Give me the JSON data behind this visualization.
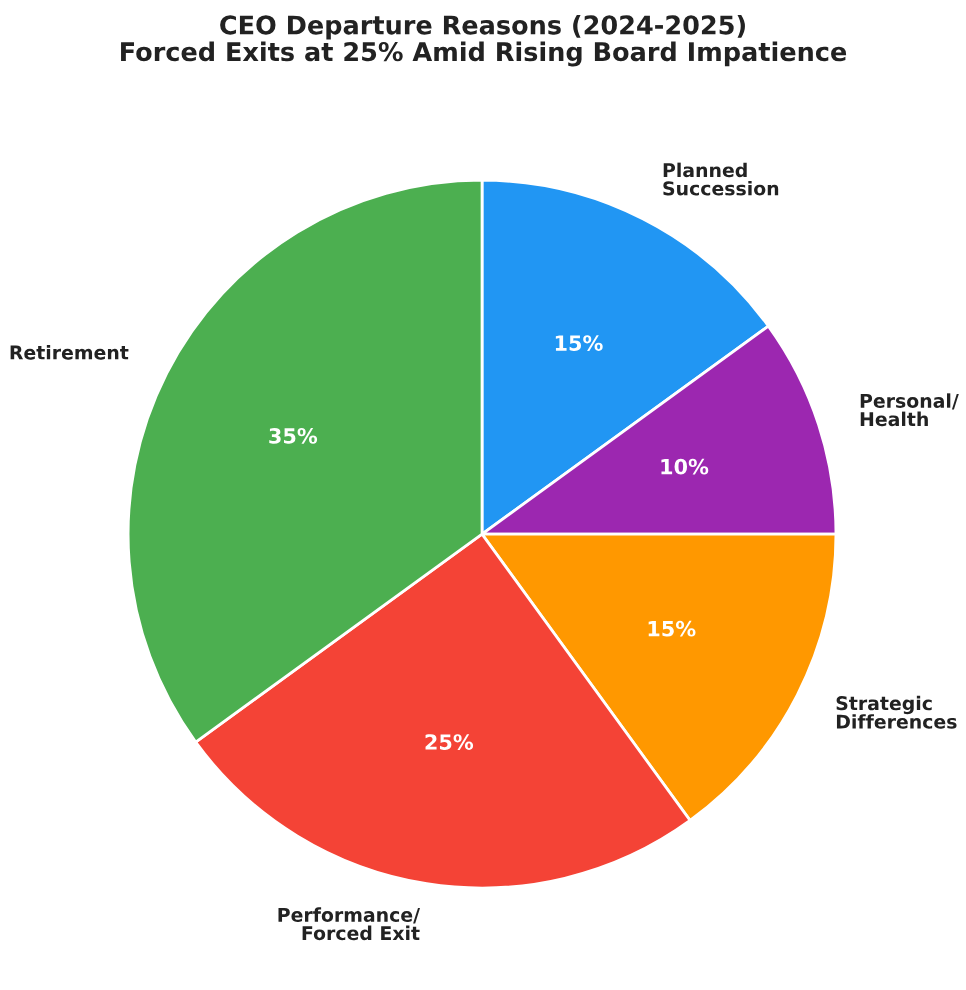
{
  "chart_data": {
    "type": "pie",
    "title": "CEO Departure Reasons (2024-2025)",
    "subtitle": "Forced Exits at 25% Amid Rising Board Impatience",
    "categories": [
      "Planned\nSuccession",
      "Personal/\nHealth",
      "Strategic\nDifferences",
      "Performance/\nForced Exit",
      "Retirement"
    ],
    "values": [
      15,
      10,
      15,
      25,
      35
    ],
    "value_labels": [
      "15%",
      "10%",
      "15%",
      "25%",
      "35%"
    ],
    "colors": [
      "#2196f3",
      "#9c27b0",
      "#ff9800",
      "#f44336",
      "#4caf50"
    ],
    "legend": false
  }
}
